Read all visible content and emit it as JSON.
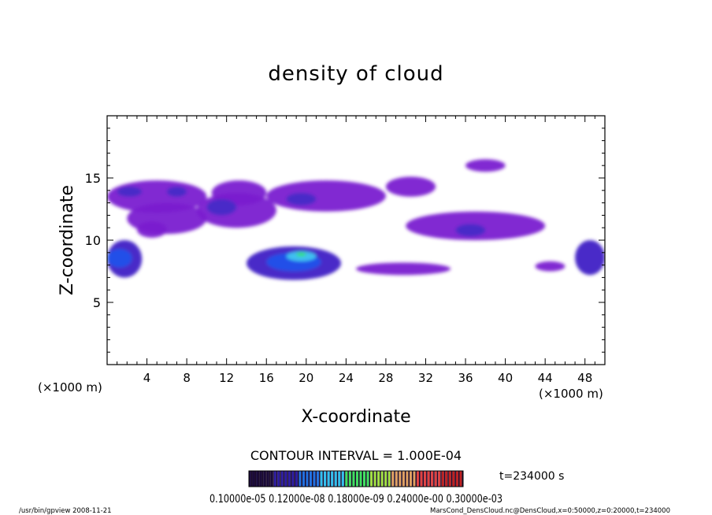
{
  "chart_data": {
    "type": "heatmap",
    "title": "density of cloud",
    "xlabel": "X-coordinate",
    "ylabel": "Z-coordinate",
    "x_unit_left": "(×1000 m)",
    "x_unit_right": "(×1000 m)",
    "xlim": [
      0,
      50
    ],
    "ylim": [
      0,
      20
    ],
    "x_ticks": [
      4,
      8,
      12,
      16,
      20,
      24,
      28,
      32,
      36,
      40,
      44,
      48
    ],
    "y_ticks": [
      5,
      10,
      15
    ],
    "contour_interval": "CONTOUR INTERVAL = 1.000E-04",
    "time_label": "t=234000 s",
    "colorbar_labels": "0.10000e-05  0.12000e-08  0.18000e-09  0.24000e-00  0.30000e-03",
    "colorbar_colors": [
      "#1a0a3a",
      "#2a1aa0",
      "#2070e0",
      "#30c0f0",
      "#40e060",
      "#a0e040",
      "#e0a060",
      "#e04040",
      "#c02020"
    ],
    "cloud_colors": {
      "low": "#7a1bd0",
      "mid": "#4a2ac8",
      "high": "#2050e8",
      "peak": "#40c0f0",
      "core": "#30e070"
    },
    "cloud_regions": [
      {
        "x": [
          0,
          10
        ],
        "z": [
          12.2,
          14.8
        ],
        "level": "low"
      },
      {
        "x": [
          10.5,
          16
        ],
        "z": [
          12.8,
          14.8
        ],
        "level": "low"
      },
      {
        "x": [
          16,
          28
        ],
        "z": [
          12.3,
          14.8
        ],
        "level": "low"
      },
      {
        "x": [
          28,
          33
        ],
        "z": [
          13.5,
          15.1
        ],
        "level": "low"
      },
      {
        "x": [
          2,
          10
        ],
        "z": [
          10.5,
          13
        ],
        "level": "low"
      },
      {
        "x": [
          9,
          17
        ],
        "z": [
          11,
          13.8
        ],
        "level": "low"
      },
      {
        "x": [
          3,
          6
        ],
        "z": [
          10.2,
          11.5
        ],
        "level": "low"
      },
      {
        "x": [
          30,
          44
        ],
        "z": [
          10,
          12.3
        ],
        "level": "low"
      },
      {
        "x": [
          36,
          40
        ],
        "z": [
          15.5,
          16.5
        ],
        "level": "low"
      },
      {
        "x": [
          0,
          3.5
        ],
        "z": [
          7,
          10
        ],
        "level": "mid"
      },
      {
        "x": [
          14,
          23.5
        ],
        "z": [
          6.8,
          9.5
        ],
        "level": "mid"
      },
      {
        "x": [
          25,
          34.5
        ],
        "z": [
          7.2,
          8.2
        ],
        "level": "low"
      },
      {
        "x": [
          43,
          46
        ],
        "z": [
          7.5,
          8.3
        ],
        "level": "low"
      },
      {
        "x": [
          47,
          50
        ],
        "z": [
          7.2,
          10
        ],
        "level": "mid"
      },
      {
        "x": [
          1,
          3.5
        ],
        "z": [
          13.5,
          14.3
        ],
        "level": "mid"
      },
      {
        "x": [
          6,
          8
        ],
        "z": [
          13.5,
          14.3
        ],
        "level": "mid"
      },
      {
        "x": [
          10,
          13
        ],
        "z": [
          12,
          13.3
        ],
        "level": "mid"
      },
      {
        "x": [
          18,
          21
        ],
        "z": [
          12.8,
          13.8
        ],
        "level": "mid"
      },
      {
        "x": [
          35,
          38
        ],
        "z": [
          10.3,
          11.3
        ],
        "level": "mid"
      },
      {
        "x": [
          0,
          2.5
        ],
        "z": [
          7.8,
          9.3
        ],
        "level": "high"
      },
      {
        "x": [
          16,
          21.5
        ],
        "z": [
          7.5,
          9
        ],
        "level": "high"
      },
      {
        "x": [
          18,
          21
        ],
        "z": [
          8.3,
          9.1
        ],
        "level": "peak"
      },
      {
        "x": [
          19,
          20
        ],
        "z": [
          8.7,
          9
        ],
        "level": "core"
      }
    ]
  },
  "footer": {
    "left": "/usr/bin/gpview   2008-11-21",
    "right": "MarsCond_DensCloud.nc@DensCloud,x=0:50000,z=0:20000,t=234000"
  }
}
